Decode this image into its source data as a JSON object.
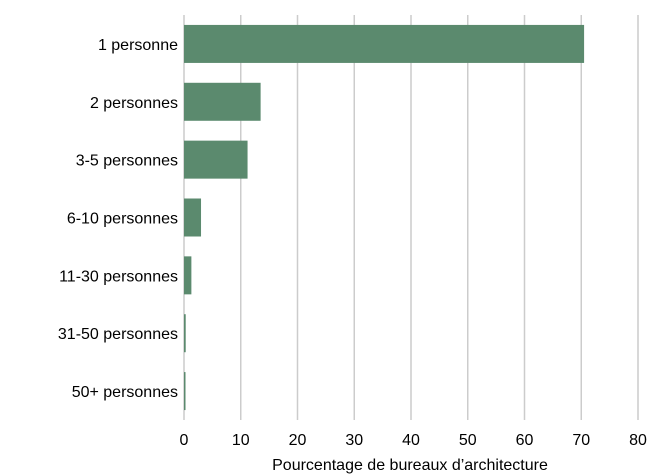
{
  "chart_data": {
    "type": "bar",
    "orientation": "horizontal",
    "categories": [
      "1 personne",
      "2 personnes",
      "3-5 personnes",
      "6-10 personnes",
      "11-30 personnes",
      "31-50 personnes",
      "50+ personnes"
    ],
    "values": [
      70.5,
      13.5,
      11.2,
      3.0,
      1.3,
      0.3,
      0.2
    ],
    "xlabel": "Pourcentage de bureaux d’architecture",
    "ylabel": "",
    "xlim": [
      0,
      80
    ],
    "xticks": [
      0,
      10,
      20,
      30,
      40,
      50,
      60,
      70,
      80
    ],
    "grid": "vertical",
    "bar_color": "#5b8a6e",
    "grid_color": "#cccccc"
  }
}
